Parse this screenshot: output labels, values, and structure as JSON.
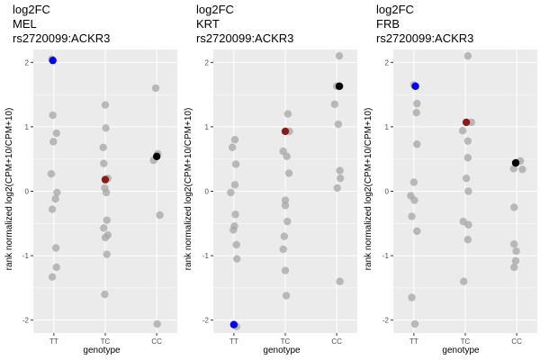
{
  "chart_data": [
    {
      "type": "scatter",
      "title": [
        "log2FC",
        "MEL",
        "rs2720099:ACKR3"
      ],
      "xlabel": "genotype",
      "ylabel": "rank normalized log2(CPM+10/CPM+10)",
      "categories": [
        "TT",
        "TC",
        "CC"
      ],
      "yticks": [
        -2,
        -1,
        0,
        1,
        2
      ],
      "ylim": [
        -2.2,
        2.2
      ],
      "grid": true,
      "colors": {
        "background": "#ebebeb",
        "grid": "#ffffff",
        "point": "#a6a6a6",
        "highlight_TT": "#0000ee",
        "highlight_TC": "#8b1a1a",
        "highlight_CC": "#000000"
      },
      "series": [
        {
          "group": "TT",
          "points": [
            [
              -0.04,
              2.05
            ],
            [
              -0.02,
              1.18
            ],
            [
              0.05,
              0.9
            ],
            [
              -0.01,
              0.77
            ],
            [
              -0.05,
              0.27
            ],
            [
              0.06,
              -0.02
            ],
            [
              0.03,
              -0.12
            ],
            [
              -0.03,
              -0.28
            ],
            [
              0.04,
              -0.88
            ],
            [
              0.05,
              -1.18
            ],
            [
              -0.03,
              -1.33
            ]
          ]
        },
        {
          "group": "TC",
          "points": [
            [
              0.0,
              1.34
            ],
            [
              0.01,
              0.98
            ],
            [
              -0.04,
              0.68
            ],
            [
              -0.03,
              0.43
            ],
            [
              0.05,
              0.2
            ],
            [
              -0.01,
              0.05
            ],
            [
              0.02,
              -0.02
            ],
            [
              0.03,
              -0.45
            ],
            [
              -0.03,
              -0.57
            ],
            [
              0.05,
              -0.68
            ],
            [
              0.0,
              -0.72
            ],
            [
              0.03,
              -0.98
            ],
            [
              -0.01,
              -1.6
            ]
          ]
        },
        {
          "group": "CC",
          "points": [
            [
              -0.02,
              1.6
            ],
            [
              0.02,
              0.58
            ],
            [
              -0.06,
              0.48
            ],
            [
              0.06,
              -0.37
            ],
            [
              0.01,
              -2.06
            ]
          ]
        }
      ],
      "highlights": [
        {
          "group": "TT",
          "x_offset": -0.02,
          "y": 2.03,
          "color": "#0000ee"
        },
        {
          "group": "TC",
          "x_offset": 0.0,
          "y": 0.18,
          "color": "#8b1a1a"
        },
        {
          "group": "CC",
          "x_offset": 0.0,
          "y": 0.54,
          "color": "#000000"
        }
      ]
    },
    {
      "type": "scatter",
      "title": [
        "log2FC",
        "KRT",
        "rs2720099:ACKR3"
      ],
      "xlabel": "genotype",
      "ylabel": "rank normalized log2(CPM+10/CPM+10)",
      "categories": [
        "TT",
        "TC",
        "CC"
      ],
      "yticks": [
        -2,
        -1,
        0,
        1,
        2
      ],
      "ylim": [
        -2.2,
        2.2
      ],
      "grid": true,
      "colors": {
        "background": "#ebebeb",
        "grid": "#ffffff",
        "point": "#a6a6a6",
        "highlight_TT": "#0000ee",
        "highlight_TC": "#8b1a1a",
        "highlight_CC": "#000000"
      },
      "series": [
        {
          "group": "TT",
          "points": [
            [
              0.02,
              0.8
            ],
            [
              -0.03,
              0.68
            ],
            [
              0.04,
              0.42
            ],
            [
              0.02,
              0.1
            ],
            [
              -0.06,
              -0.02
            ],
            [
              0.03,
              -0.36
            ],
            [
              0.01,
              -0.54
            ],
            [
              -0.01,
              -0.6
            ],
            [
              0.05,
              -0.83
            ],
            [
              0.06,
              -1.05
            ],
            [
              0.05,
              -2.1
            ]
          ]
        },
        {
          "group": "TC",
          "points": [
            [
              0.05,
              1.2
            ],
            [
              0.08,
              0.93
            ],
            [
              -0.04,
              0.62
            ],
            [
              0.03,
              0.54
            ],
            [
              0.07,
              0.28
            ],
            [
              0.0,
              -0.14
            ],
            [
              0.0,
              -0.22
            ],
            [
              0.04,
              -0.47
            ],
            [
              -0.02,
              -0.7
            ],
            [
              -0.04,
              -0.9
            ],
            [
              0.0,
              -1.23
            ],
            [
              0.02,
              -1.62
            ]
          ]
        },
        {
          "group": "CC",
          "points": [
            [
              0.05,
              2.1
            ],
            [
              0.0,
              1.63
            ],
            [
              0.06,
              1.63
            ],
            [
              -0.04,
              1.35
            ],
            [
              0.03,
              1.04
            ],
            [
              0.06,
              0.32
            ],
            [
              0.07,
              0.2
            ],
            [
              0.01,
              0.05
            ],
            [
              0.06,
              -1.4
            ]
          ]
        }
      ],
      "highlights": [
        {
          "group": "TT",
          "x_offset": 0.0,
          "y": -2.07,
          "color": "#0000ee"
        },
        {
          "group": "TC",
          "x_offset": 0.0,
          "y": 0.93,
          "color": "#8b1a1a"
        },
        {
          "group": "CC",
          "x_offset": 0.05,
          "y": 1.63,
          "color": "#000000"
        }
      ]
    },
    {
      "type": "scatter",
      "title": [
        "log2FC",
        "FRB",
        "rs2720099:ACKR3"
      ],
      "xlabel": "genotype",
      "ylabel": "rank normalized log2(CPM+10/CPM+10)",
      "categories": [
        "TT",
        "TC",
        "CC"
      ],
      "yticks": [
        -2,
        -1,
        0,
        1,
        2
      ],
      "ylim": [
        -2.2,
        2.2
      ],
      "grid": true,
      "colors": {
        "background": "#ebebeb",
        "grid": "#ffffff",
        "point": "#a6a6a6",
        "highlight_TT": "#0000ee",
        "highlight_TC": "#8b1a1a",
        "highlight_CC": "#000000"
      },
      "series": [
        {
          "group": "TT",
          "points": [
            [
              0.0,
              1.65
            ],
            [
              0.06,
              1.36
            ],
            [
              0.05,
              1.22
            ],
            [
              0.06,
              0.73
            ],
            [
              0.0,
              0.14
            ],
            [
              -0.06,
              -0.07
            ],
            [
              0.01,
              -0.14
            ],
            [
              -0.04,
              -0.39
            ],
            [
              0.06,
              -0.62
            ],
            [
              -0.04,
              -1.65
            ],
            [
              0.02,
              -2.06
            ]
          ]
        },
        {
          "group": "TC",
          "points": [
            [
              0.05,
              2.1
            ],
            [
              0.12,
              1.07
            ],
            [
              -0.05,
              0.94
            ],
            [
              0.05,
              0.78
            ],
            [
              0.05,
              0.52
            ],
            [
              0.02,
              0.2
            ],
            [
              0.06,
              0.0
            ],
            [
              -0.04,
              -0.47
            ],
            [
              0.06,
              -0.52
            ],
            [
              0.05,
              -0.75
            ],
            [
              -0.03,
              -1.4
            ]
          ]
        },
        {
          "group": "CC",
          "points": [
            [
              0.07,
              0.47
            ],
            [
              -0.06,
              0.35
            ],
            [
              0.11,
              0.34
            ],
            [
              -0.05,
              -0.25
            ],
            [
              -0.05,
              -0.82
            ],
            [
              -0.01,
              -0.93
            ],
            [
              -0.02,
              -1.08
            ],
            [
              -0.05,
              -1.18
            ]
          ]
        }
      ],
      "highlights": [
        {
          "group": "TT",
          "x_offset": 0.03,
          "y": 1.63,
          "color": "#0000ee"
        },
        {
          "group": "TC",
          "x_offset": 0.02,
          "y": 1.07,
          "color": "#8b1a1a"
        },
        {
          "group": "CC",
          "x_offset": -0.02,
          "y": 0.44,
          "color": "#000000"
        }
      ]
    }
  ]
}
